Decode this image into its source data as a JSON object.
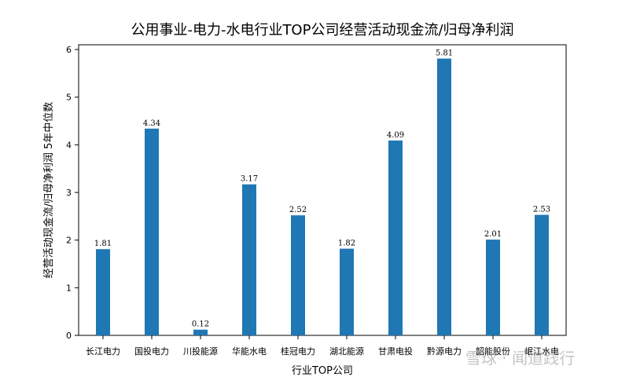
{
  "chart_data": {
    "type": "bar",
    "title": "公用事业-电力-水电行业TOP公司经营活动现金流/归母净利润",
    "xlabel": "行业TOP公司",
    "ylabel": "经营活动现金流/归母净利润 5年中位数",
    "categories": [
      "长江电力",
      "国投电力",
      "川投能源",
      "华能水电",
      "桂冠电力",
      "湖北能源",
      "甘肃电投",
      "黔源电力",
      "韶能股份",
      "岷江水电"
    ],
    "values": [
      1.81,
      4.34,
      0.12,
      3.17,
      2.52,
      1.82,
      4.09,
      5.81,
      2.01,
      2.53
    ],
    "data_labels": [
      "1.81",
      "4.34",
      "0.12",
      "3.17",
      "2.52",
      "1.82",
      "4.09",
      "5.81",
      "2.01",
      "2.53"
    ],
    "ylim": [
      0,
      6.1
    ],
    "yticks": [
      0,
      1,
      2,
      3,
      4,
      5,
      6
    ],
    "bar_color": "#1f77b4",
    "grid": false,
    "legend": "none"
  },
  "watermark": "雪球 · 闻道践行"
}
